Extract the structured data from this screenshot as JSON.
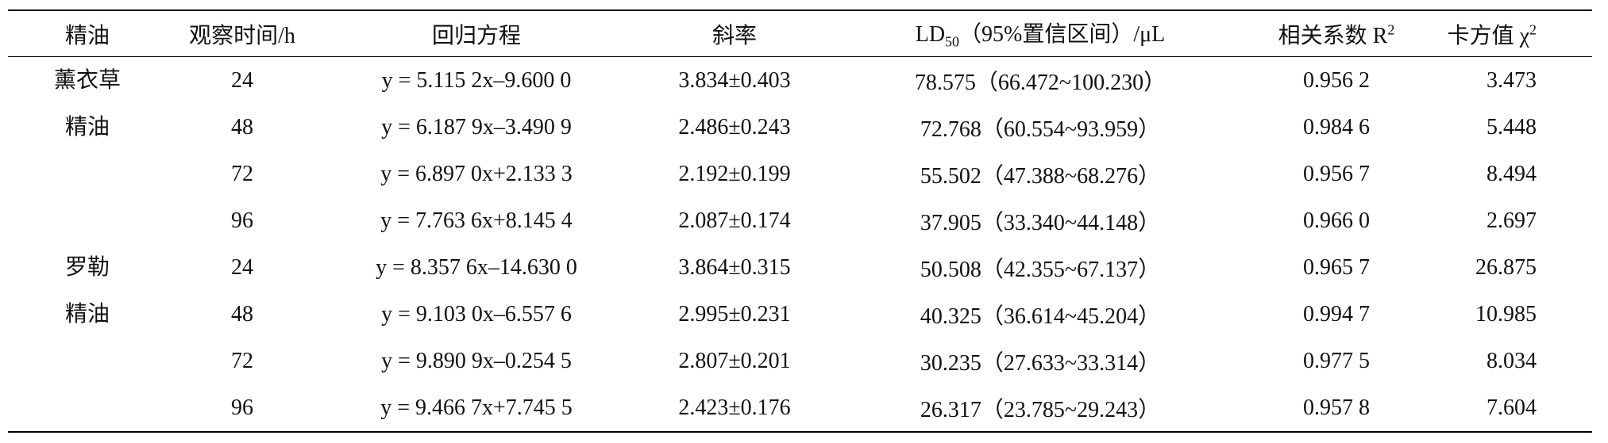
{
  "table": {
    "header": [
      {
        "text": "精油"
      },
      {
        "text": "观察时间/h"
      },
      {
        "text": "回归方程"
      },
      {
        "text": "斜率"
      },
      {
        "text": "LD",
        "sub": "50",
        "after": "（95%置信区间）/μL"
      },
      {
        "text": "相关系数 R",
        "sup": "2"
      },
      {
        "text": "卡方值 χ",
        "sup": "2"
      }
    ],
    "groups": [
      {
        "name": [
          "薰衣草",
          "精油"
        ],
        "rows": [
          [
            "24",
            "y = 5.115 2x–9.600 0",
            "3.834±0.403",
            "78.575（66.472~100.230）",
            "0.956 2",
            "3.473"
          ],
          [
            "48",
            "y = 6.187 9x–3.490 9",
            "2.486±0.243",
            "72.768（60.554~93.959）",
            "0.984 6",
            "5.448"
          ],
          [
            "72",
            "y = 6.897 0x+2.133 3",
            "2.192±0.199",
            "55.502（47.388~68.276）",
            "0.956 7",
            "8.494"
          ],
          [
            "96",
            "y = 7.763 6x+8.145 4",
            "2.087±0.174",
            "37.905（33.340~44.148）",
            "0.966 0",
            "2.697"
          ]
        ]
      },
      {
        "name": [
          "罗勒",
          "精油"
        ],
        "rows": [
          [
            "24",
            "y = 8.357 6x–14.630 0",
            "3.864±0.315",
            "50.508（42.355~67.137）",
            "0.965 7",
            "26.875"
          ],
          [
            "48",
            "y = 9.103 0x–6.557 6",
            "2.995±0.231",
            "40.325（36.614~45.204）",
            "0.994 7",
            "10.985"
          ],
          [
            "72",
            "y = 9.890 9x–0.254 5",
            "2.807±0.201",
            "30.235（27.633~33.314）",
            "0.977 5",
            "8.034"
          ],
          [
            "96",
            "y = 9.466 7x+7.745 5",
            "2.423±0.176",
            "26.317（23.785~29.243）",
            "0.957 8",
            "7.604"
          ]
        ]
      }
    ]
  }
}
